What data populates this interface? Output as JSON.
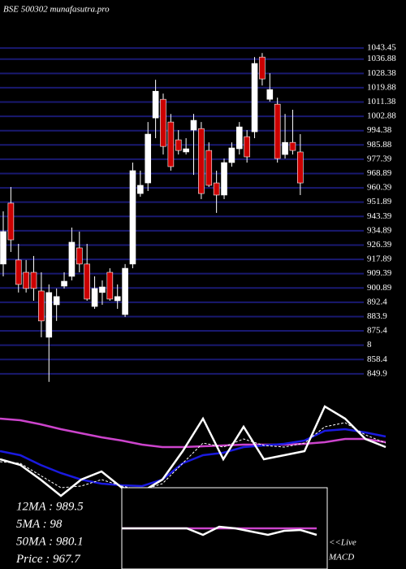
{
  "chart_data": [
    {
      "type": "candlestick",
      "title": "BSE 500302 munafasutra.pro",
      "categories": [
        null,
        null,
        null,
        null,
        null,
        null,
        null,
        null,
        null,
        null,
        null,
        null,
        null,
        null,
        null,
        null,
        null,
        null,
        null,
        null,
        null,
        null,
        null,
        null,
        null,
        null,
        null,
        null,
        null,
        null,
        null,
        null,
        null,
        null,
        null,
        null,
        null,
        null,
        null,
        null
      ],
      "open": [
        915.1,
        951.3,
        917.5,
        910.2,
        910.2,
        899.1,
        871.6,
        890.9,
        902.0,
        907.8,
        924.7,
        915.1,
        889.9,
        898.2,
        910.2,
        893.3,
        885.1,
        915.1,
        957.0,
        963.3,
        1001.9,
        1013.0,
        999.5,
        988.9,
        981.7,
        994.7,
        995.6,
        982.6,
        963.3,
        956.1,
        975.4,
        983.6,
        990.8,
        993.7,
        1038.1,
        1013.0,
        1010.1,
        980.2,
        987.4,
        981.7
      ],
      "high": [
        946.4,
        960.9,
        927.1,
        917.5,
        919.9,
        910.2,
        903.0,
        900.6,
        910.2,
        936.8,
        934.4,
        927.1,
        907.8,
        905.4,
        912.6,
        903.0,
        915.1,
        975.4,
        970.6,
        999.5,
        1024.6,
        1016.4,
        1004.3,
        994.7,
        989.9,
        1004.3,
        999.5,
        987.4,
        970.6,
        977.8,
        987.4,
        999.5,
        994.7,
        1038.1,
        1040.5,
        1028.5,
        1014.0,
        1004.3,
        1006.8,
        992.3
      ],
      "low": [
        907.8,
        922.3,
        898.2,
        898.2,
        893.3,
        871.6,
        845.1,
        881.3,
        900.6,
        905.4,
        910.2,
        893.3,
        888.5,
        890.9,
        893.3,
        888.5,
        883.7,
        912.6,
        955.1,
        958.5,
        989.9,
        980.2,
        970.6,
        980.2,
        980.2,
        968.1,
        953.7,
        960.9,
        945.5,
        953.7,
        973.0,
        980.2,
        975.4,
        989.9,
        1021.2,
        1011.6,
        975.4,
        977.8,
        980.2,
        956.1
      ],
      "close": [
        934.4,
        929.5,
        903.0,
        900.6,
        900.6,
        881.3,
        898.2,
        895.8,
        904.9,
        928.1,
        915.1,
        894.3,
        900.6,
        901.5,
        894.3,
        895.8,
        912.6,
        970.6,
        961.9,
        992.3,
        1017.8,
        985.0,
        973.0,
        982.6,
        983.6,
        1000.5,
        957.0,
        961.9,
        956.1,
        975.4,
        984.1,
        996.6,
        978.8,
        1034.3,
        1025.1,
        1018.8,
        977.8,
        987.4,
        982.6,
        963.3
      ],
      "up_color": "#ffffff",
      "down_color": "#cc0000",
      "grid_color": "#191970",
      "grid": true,
      "ylim": [
        845,
        1072
      ],
      "yticks": [
        1043.45,
        1036.88,
        1028.38,
        1019.88,
        1011.38,
        1002.88,
        994.38,
        985.88,
        977.39,
        968.89,
        960.39,
        951.89,
        943.39,
        934.89,
        926.39,
        917.89,
        909.39,
        900.89,
        892.4,
        883.9,
        875.4,
        {
          "value": 866.9,
          "label": "8"
        },
        858.4,
        849.9
      ]
    },
    {
      "type": "line",
      "categories": [
        null,
        null,
        null,
        null,
        null,
        null,
        null,
        null,
        null,
        null,
        null,
        null,
        null,
        null,
        null,
        null,
        null,
        null,
        null,
        null
      ],
      "series": [
        {
          "color": "#cc44cc",
          "values": [
            185,
            183,
            178,
            172,
            167,
            162,
            158,
            153,
            150,
            150,
            151,
            152,
            153,
            153,
            153,
            154,
            156,
            160,
            160,
            156
          ]
        },
        {
          "color": "#1a1adf",
          "values": [
            145,
            140,
            128,
            118,
            110,
            105,
            103,
            102,
            110,
            130,
            140,
            143,
            150,
            152,
            154,
            158,
            170,
            172,
            168,
            163
          ]
        },
        {
          "color": "#ffffff",
          "values": [
            135,
            128,
            110,
            90,
            110,
            120,
            100,
            95,
            110,
            145,
            185,
            135,
            175,
            135,
            140,
            145,
            200,
            185,
            160,
            150
          ]
        },
        {
          "color": "#ffffff",
          "dash": true,
          "values": [
            132,
            130,
            115,
            100,
            102,
            110,
            102,
            97,
            105,
            130,
            155,
            150,
            160,
            152,
            150,
            155,
            175,
            180,
            165,
            155
          ]
        }
      ],
      "annotations": [
        "12MA : 989.5",
        "5MA : 98",
        "50MA : 980.1",
        "Price  : 967.7"
      ]
    },
    {
      "type": "line",
      "title": "MACD",
      "annotations": [
        "<<Live"
      ],
      "categories": [
        null,
        null,
        null,
        null,
        null,
        null,
        null,
        null,
        null,
        null,
        null,
        null,
        null
      ],
      "series": [
        {
          "color": "#cc44cc",
          "values": [
            0,
            0,
            0,
            0,
            0,
            0,
            0,
            0,
            0,
            0,
            0,
            0,
            0
          ]
        },
        {
          "color": "#ffffff",
          "values": [
            0,
            0,
            0,
            0,
            0,
            -8,
            2,
            0,
            -4,
            -8,
            -3,
            -2,
            -8
          ]
        }
      ]
    }
  ]
}
